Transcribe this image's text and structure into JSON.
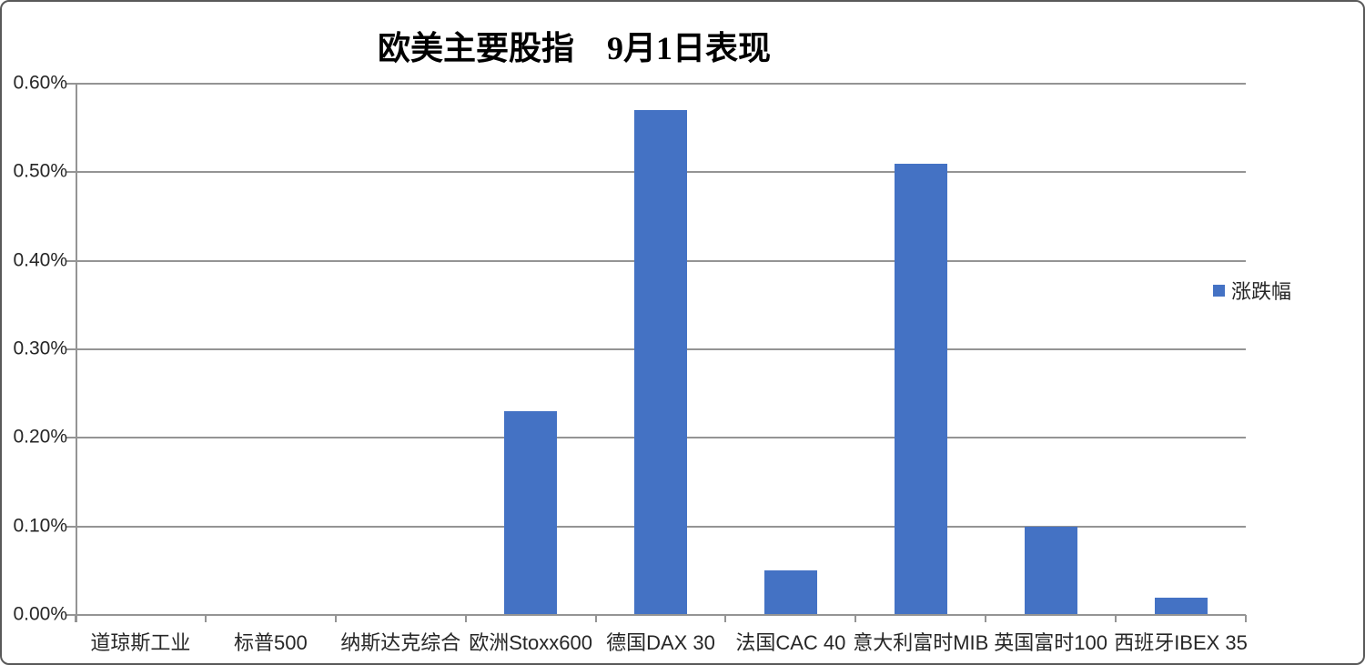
{
  "chart_data": {
    "type": "bar",
    "title": "欧美主要股指　9月1日表现",
    "categories": [
      "道琼斯工业",
      "标普500",
      "纳斯达克综合",
      "欧洲Stoxx600",
      "德国DAX 30",
      "法国CAC 40",
      "意大利富时MIB",
      "英国富时100",
      "西班牙IBEX 35"
    ],
    "series": [
      {
        "name": "涨跌幅",
        "values": [
          0,
          0,
          0,
          0.23,
          0.57,
          0.05,
          0.51,
          0.1,
          0.02
        ]
      }
    ],
    "value_unit": "percent",
    "ylim": [
      0,
      0.6
    ],
    "ytick_step": 0.1,
    "ytick_labels": [
      "0.00%",
      "0.10%",
      "0.20%",
      "0.30%",
      "0.40%",
      "0.50%",
      "0.60%"
    ],
    "grid": true,
    "legend_position": "right",
    "colors": {
      "bar": "#4472C4",
      "gridline": "#949494",
      "axis": "#949494",
      "label_text": "#262626",
      "title_text": "#000000",
      "frame_border": "#595959"
    }
  }
}
